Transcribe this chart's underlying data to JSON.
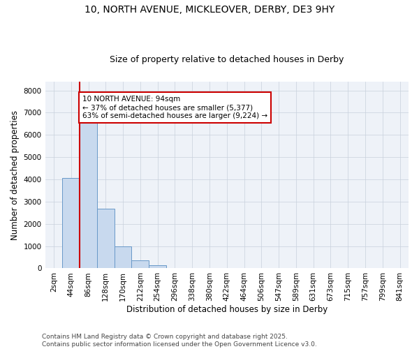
{
  "title_line1": "10, NORTH AVENUE, MICKLEOVER, DERBY, DE3 9HY",
  "title_line2": "Size of property relative to detached houses in Derby",
  "xlabel": "Distribution of detached houses by size in Derby",
  "ylabel": "Number of detached properties",
  "bar_color": "#c8d9ee",
  "bar_edge_color": "#6898c8",
  "grid_color": "#c8d0dc",
  "background_color": "#eef2f8",
  "categories": [
    "2sqm",
    "44sqm",
    "86sqm",
    "128sqm",
    "170sqm",
    "212sqm",
    "254sqm",
    "296sqm",
    "338sqm",
    "380sqm",
    "422sqm",
    "464sqm",
    "506sqm",
    "547sqm",
    "589sqm",
    "631sqm",
    "673sqm",
    "715sqm",
    "757sqm",
    "799sqm",
    "841sqm"
  ],
  "values": [
    20,
    4050,
    6650,
    2680,
    1000,
    360,
    130,
    0,
    0,
    0,
    20,
    0,
    0,
    0,
    0,
    0,
    0,
    0,
    0,
    0,
    0
  ],
  "ylim": [
    0,
    8400
  ],
  "yticks": [
    0,
    1000,
    2000,
    3000,
    4000,
    5000,
    6000,
    7000,
    8000
  ],
  "vline_x": 1.5,
  "vline_color": "#cc0000",
  "annotation_text": "10 NORTH AVENUE: 94sqm\n← 37% of detached houses are smaller (5,377)\n63% of semi-detached houses are larger (9,224) →",
  "annotation_box_color": "#ffffff",
  "annotation_box_edge": "#cc0000",
  "footer_line1": "Contains HM Land Registry data © Crown copyright and database right 2025.",
  "footer_line2": "Contains public sector information licensed under the Open Government Licence v3.0.",
  "title_fontsize": 10,
  "subtitle_fontsize": 9,
  "axis_label_fontsize": 8.5,
  "tick_fontsize": 7.5,
  "annotation_fontsize": 7.5,
  "footer_fontsize": 6.5
}
